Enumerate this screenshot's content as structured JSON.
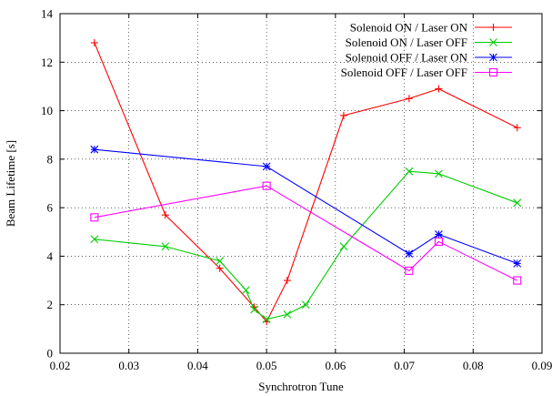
{
  "chart_data": {
    "type": "line",
    "xlabel": "Synchrotron Tune",
    "ylabel": "Beam Lifetime [s]",
    "xlim": [
      0.02,
      0.09
    ],
    "ylim": [
      0,
      14
    ],
    "x_ticks": [
      {
        "value": 0.02,
        "label": "0.02"
      },
      {
        "value": 0.03,
        "label": "0.03"
      },
      {
        "value": 0.04,
        "label": "0.04"
      },
      {
        "value": 0.05,
        "label": "0.05"
      },
      {
        "value": 0.06,
        "label": "0.06"
      },
      {
        "value": 0.07,
        "label": "0.07"
      },
      {
        "value": 0.08,
        "label": "0.08"
      },
      {
        "value": 0.09,
        "label": "0.09"
      }
    ],
    "y_ticks": [
      {
        "value": 0,
        "label": "0"
      },
      {
        "value": 2,
        "label": "2"
      },
      {
        "value": 4,
        "label": "4"
      },
      {
        "value": 6,
        "label": "6"
      },
      {
        "value": 8,
        "label": "8"
      },
      {
        "value": 10,
        "label": "10"
      },
      {
        "value": 12,
        "label": "12"
      },
      {
        "value": 14,
        "label": "14"
      }
    ],
    "grid": true,
    "legend_position": "top-right",
    "series": [
      {
        "name": "Solenoid ON / Laser ON",
        "color": "#ff0000",
        "marker": "plus",
        "x": [
          0.025,
          0.0353,
          0.0432,
          0.0482,
          0.05,
          0.053,
          0.0612,
          0.0707,
          0.075,
          0.0864
        ],
        "y": [
          12.8,
          5.7,
          3.5,
          1.9,
          1.3,
          3.0,
          9.8,
          10.5,
          10.9,
          9.3
        ]
      },
      {
        "name": "Solenoid ON / Laser OFF",
        "color": "#00cc00",
        "marker": "cross",
        "x": [
          0.025,
          0.0353,
          0.0432,
          0.047,
          0.0482,
          0.05,
          0.053,
          0.0557,
          0.0612,
          0.0707,
          0.075,
          0.0864
        ],
        "y": [
          4.7,
          4.4,
          3.8,
          2.6,
          1.8,
          1.4,
          1.6,
          2.0,
          4.4,
          7.5,
          7.4,
          6.2
        ]
      },
      {
        "name": "Solenoid OFF / Laser ON",
        "color": "#0000ff",
        "marker": "star",
        "x": [
          0.025,
          0.05,
          0.0707,
          0.075,
          0.0864
        ],
        "y": [
          8.4,
          7.7,
          4.1,
          4.9,
          3.7
        ]
      },
      {
        "name": "Solenoid OFF / Laser OFF",
        "color": "#ff00ff",
        "marker": "square",
        "x": [
          0.025,
          0.05,
          0.0707,
          0.075,
          0.0864
        ],
        "y": [
          5.6,
          6.9,
          3.4,
          4.6,
          3.0
        ]
      }
    ]
  }
}
